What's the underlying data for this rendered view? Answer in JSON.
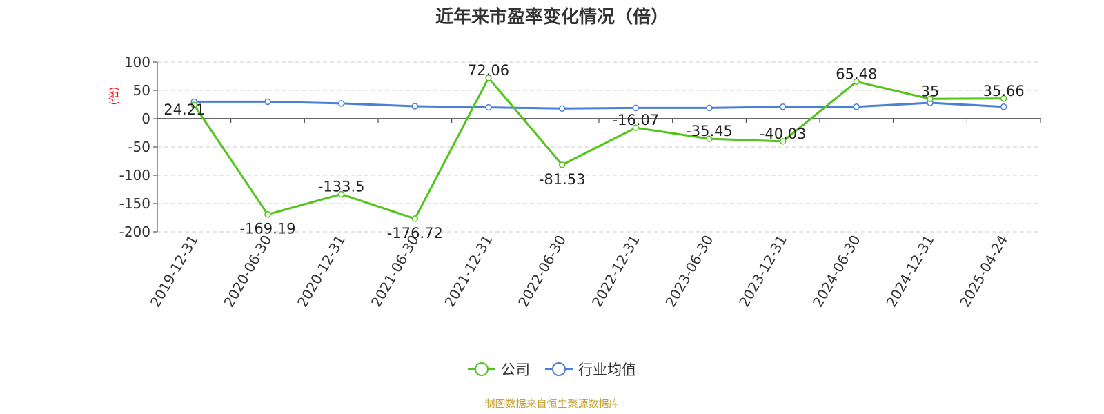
{
  "chart_data": {
    "type": "line",
    "title": "近年来市盈率变化情况（倍）",
    "ylabel": "(倍)",
    "xlabel": "",
    "categories": [
      "2019-12-31",
      "2020-06-30",
      "2020-12-31",
      "2021-06-30",
      "2021-12-31",
      "2022-06-30",
      "2022-12-31",
      "2023-06-30",
      "2023-12-31",
      "2024-06-30",
      "2024-12-31",
      "2025-04-24"
    ],
    "series": [
      {
        "name": "公司",
        "color": "#52c41a",
        "values": [
          24.21,
          -169.19,
          -133.5,
          -176.72,
          72.06,
          -81.53,
          -16.07,
          -35.45,
          -40.03,
          65.48,
          35,
          35.66
        ],
        "labels": [
          "24.21",
          "-169.19",
          "-133.5",
          "-176.72",
          "72.06",
          "-81.53",
          "-16.07",
          "-35.45",
          "-40.03",
          "65.48",
          "35",
          "35.66"
        ]
      },
      {
        "name": "行业均值",
        "color": "#4a7fd9",
        "values": [
          30,
          30,
          27,
          22,
          20,
          18,
          19,
          19,
          21,
          21,
          28,
          21
        ]
      }
    ],
    "ylim": [
      -200,
      100
    ],
    "yticks": [
      100,
      50,
      0,
      -50,
      -100,
      -150,
      -200
    ],
    "grid": true,
    "legend_position": "bottom"
  },
  "source": "制图数据来自恒生聚源数据库"
}
